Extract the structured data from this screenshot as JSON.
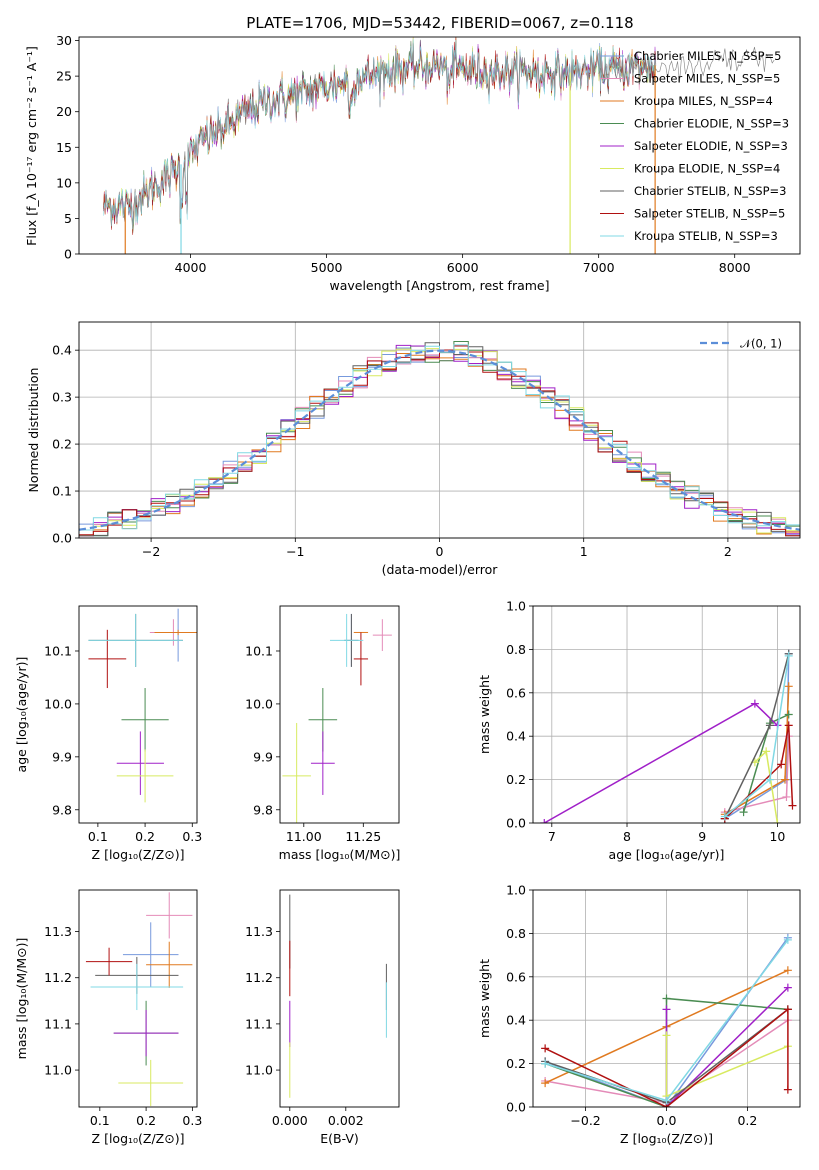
{
  "title": "PLATE=1706, MJD=53442, FIBERID=0067, z=0.118",
  "colors": {
    "models": [
      "#7799dd",
      "#e48bb8",
      "#e07a20",
      "#4a8c52",
      "#a020c8",
      "#d8ea60",
      "#606060",
      "#b01010",
      "#80d8e4"
    ],
    "gaussian": "#5b8ed8",
    "grid": "#b0b0b0"
  },
  "chart_data": [
    {
      "id": "spectrum",
      "type": "line",
      "xlabel": "wavelength [Angstrom, rest frame]",
      "ylabel": "Flux [f_λ 10⁻¹⁷ erg cm⁻² s⁻¹ A⁻¹]",
      "xlim": [
        3180,
        8480
      ],
      "ylim": [
        0,
        30.5
      ],
      "xticks": [
        4000,
        5000,
        6000,
        7000,
        8000
      ],
      "yticks": [
        0,
        5,
        10,
        15,
        20,
        25,
        30
      ],
      "legend_position": "upper-right",
      "grid": false,
      "continuum_shape": {
        "x": [
          3360,
          3550,
          3700,
          3850,
          3950,
          4100,
          4300,
          4500,
          4800,
          5000,
          5200,
          5500,
          5800,
          6000,
          6300,
          6600,
          6800,
          7000,
          7200,
          7400,
          7600,
          7800,
          8000,
          8250
        ],
        "y": [
          7.0,
          6.5,
          9.0,
          11.0,
          13.0,
          16.0,
          18.5,
          21.0,
          22.5,
          23.5,
          24.5,
          26.0,
          26.5,
          26.0,
          25.5,
          25.5,
          25.5,
          26.0,
          26.0,
          26.5,
          26.5,
          27.0,
          27.0,
          28.0
        ]
      },
      "series": [
        {
          "name": "Chabrier MILES, N_SSP=5"
        },
        {
          "name": "Salpeter MILES, N_SSP=5"
        },
        {
          "name": "Kroupa MILES, N_SSP=4"
        },
        {
          "name": "Chabrier ELODIE, N_SSP=3"
        },
        {
          "name": "Salpeter ELODIE, N_SSP=3"
        },
        {
          "name": "Kroupa ELODIE, N_SSP=4"
        },
        {
          "name": "Chabrier STELIB, N_SSP=3"
        },
        {
          "name": "Salpeter STELIB, N_SSP=5"
        },
        {
          "name": "Kroupa STELIB, N_SSP=3"
        }
      ]
    },
    {
      "id": "residuals",
      "type": "line",
      "xlabel": "(data-model)/error",
      "ylabel": "Normed distribution",
      "xlim": [
        -2.5,
        2.5
      ],
      "ylim": [
        0,
        0.46
      ],
      "xticks": [
        -2,
        -1,
        0,
        1,
        2
      ],
      "yticks": [
        0.0,
        0.1,
        0.2,
        0.3,
        0.4
      ],
      "grid": true,
      "legend": "𝒩(0, 1)",
      "legend_position": "upper-right"
    },
    {
      "id": "age_vs_Z",
      "type": "scatter",
      "xlabel": "Z [log₁₀(Z/Z⊙)]",
      "ylabel": "age  [log₁₀(age/yr)]",
      "xlim": [
        0.06,
        0.31
      ],
      "ylim": [
        9.775,
        10.185
      ],
      "xticks": [
        0.1,
        0.2,
        0.3
      ],
      "yticks": [
        9.8,
        9.9,
        10.0,
        10.1
      ],
      "points": [
        {
          "x": 0.27,
          "y": 10.13,
          "xerr": 0.0,
          "yerr": 0.05
        },
        {
          "x": 0.26,
          "y": 10.135,
          "xerr": 0.05,
          "yerr": 0.025
        },
        {
          "x": 0.27,
          "y": 10.135,
          "xerr": 0.05,
          "yerr": 0.005
        },
        {
          "x": 0.2,
          "y": 9.97,
          "xerr": 0.05,
          "yerr": 0.06
        },
        {
          "x": 0.19,
          "y": 9.888,
          "xerr": 0.05,
          "yerr": 0.06
        },
        {
          "x": 0.2,
          "y": 9.864,
          "xerr": 0.06,
          "yerr": 0.05
        },
        {
          "x": 0.18,
          "y": 10.12,
          "xerr": 0.1,
          "yerr": 0.05
        },
        {
          "x": 0.12,
          "y": 10.085,
          "xerr": 0.04,
          "yerr": 0.055
        },
        {
          "x": 0.18,
          "y": 10.12,
          "xerr": 0.1,
          "yerr": 0.05
        }
      ]
    },
    {
      "id": "age_vs_mass",
      "type": "scatter",
      "xlabel": "mass [log₁₀(M/M⊙)]",
      "ylabel": "",
      "xlim": [
        10.9,
        11.4
      ],
      "ylim": [
        9.775,
        10.185
      ],
      "xticks": [
        11.0,
        11.25
      ],
      "xticklabels": [
        "11.00",
        "11.25"
      ],
      "yticks": [
        9.8,
        9.9,
        10.0,
        10.1
      ],
      "points": [
        {
          "x": 11.2,
          "y": 10.12,
          "xerr": 0.03,
          "yerr": 0.05
        },
        {
          "x": 11.33,
          "y": 10.13,
          "xerr": 0.04,
          "yerr": 0.03
        },
        {
          "x": 11.24,
          "y": 10.135,
          "xerr": 0.03,
          "yerr": 0.0
        },
        {
          "x": 11.08,
          "y": 9.97,
          "xerr": 0.06,
          "yerr": 0.06
        },
        {
          "x": 11.08,
          "y": 9.888,
          "xerr": 0.05,
          "yerr": 0.06
        },
        {
          "x": 10.97,
          "y": 9.864,
          "xerr": 0.06,
          "yerr": 0.1
        },
        {
          "x": 11.2,
          "y": 10.12,
          "xerr": 0.03,
          "yerr": 0.05
        },
        {
          "x": 11.24,
          "y": 10.085,
          "xerr": 0.03,
          "yerr": 0.05
        },
        {
          "x": 11.18,
          "y": 10.12,
          "xerr": 0.07,
          "yerr": 0.05
        }
      ]
    },
    {
      "id": "weight_vs_age",
      "type": "line",
      "xlabel": "age  [log₁₀(age/yr)]",
      "ylabel": "mass weight",
      "xlim": [
        6.75,
        10.3
      ],
      "ylim": [
        0,
        1
      ],
      "xticks": [
        7,
        8,
        9,
        10
      ],
      "yticks": [
        0.0,
        0.2,
        0.4,
        0.6,
        0.8,
        1.0
      ],
      "grid": true,
      "series": [
        {
          "x": [
            9.3,
            10.12,
            10.15
          ],
          "y": [
            0.02,
            0.2,
            0.78
          ]
        },
        {
          "x": [
            9.3,
            10.12,
            10.15
          ],
          "y": [
            0.05,
            0.12,
            0.4
          ]
        },
        {
          "x": [
            9.3,
            10.1,
            10.15
          ],
          "y": [
            0.04,
            0.2,
            0.63
          ]
        },
        {
          "x": [
            9.55,
            9.9,
            10.15
          ],
          "y": [
            0.05,
            0.46,
            0.5
          ]
        },
        {
          "x": [
            6.9,
            9.7,
            10.0
          ],
          "y": [
            0.0,
            0.55,
            0.45
          ]
        },
        {
          "x": [
            9.7,
            9.85,
            10.0
          ],
          "y": [
            0.28,
            0.33,
            0.0
          ]
        },
        {
          "x": [
            9.3,
            9.9,
            10.15
          ],
          "y": [
            0.02,
            0.45,
            0.78
          ]
        },
        {
          "x": [
            9.3,
            10.05,
            10.15,
            10.2
          ],
          "y": [
            0.02,
            0.27,
            0.45,
            0.08
          ]
        },
        {
          "x": [
            9.3,
            9.9,
            10.15
          ],
          "y": [
            0.03,
            0.2,
            0.77
          ]
        }
      ]
    },
    {
      "id": "mass_vs_Z",
      "type": "scatter",
      "xlabel": "Z [log₁₀(Z/Z⊙)]",
      "ylabel": "mass [log₁₀(M/M⊙)]",
      "xlim": [
        0.055,
        0.31
      ],
      "ylim": [
        10.92,
        11.39
      ],
      "xticks": [
        0.1,
        0.2,
        0.3
      ],
      "yticks": [
        11.0,
        11.1,
        11.2,
        11.3
      ],
      "points": [
        {
          "x": 0.21,
          "y": 11.25,
          "xerr": 0.06,
          "yerr": 0.07
        },
        {
          "x": 0.25,
          "y": 11.335,
          "xerr": 0.05,
          "yerr": 0.05
        },
        {
          "x": 0.25,
          "y": 11.228,
          "xerr": 0.05,
          "yerr": 0.05
        },
        {
          "x": 0.2,
          "y": 11.08,
          "xerr": 0.07,
          "yerr": 0.07
        },
        {
          "x": 0.2,
          "y": 11.08,
          "xerr": 0.07,
          "yerr": 0.05
        },
        {
          "x": 0.21,
          "y": 10.972,
          "xerr": 0.07,
          "yerr": 0.05
        },
        {
          "x": 0.18,
          "y": 11.205,
          "xerr": 0.09,
          "yerr": 0.04
        },
        {
          "x": 0.12,
          "y": 11.235,
          "xerr": 0.05,
          "yerr": 0.03
        },
        {
          "x": 0.18,
          "y": 11.18,
          "xerr": 0.1,
          "yerr": 0.05
        }
      ]
    },
    {
      "id": "mass_vs_ebv",
      "type": "scatter",
      "xlabel": "E(B-V)",
      "ylabel": "",
      "xlim": [
        -0.00035,
        0.0039
      ],
      "ylim": [
        10.92,
        11.39
      ],
      "xticks": [
        0.0,
        0.002
      ],
      "xticklabels": [
        "0.000",
        "0.002"
      ],
      "yticks": [
        11.0,
        11.1,
        11.2,
        11.3
      ],
      "points": [
        {
          "x": 0.0,
          "y": 11.3,
          "xerr": 0,
          "yerr": 0.08
        },
        {
          "x": 0.0,
          "y": 11.22,
          "xerr": 0,
          "yerr": 0.06
        },
        {
          "x": 0.0,
          "y": 11.1,
          "xerr": 0,
          "yerr": 0.05
        },
        {
          "x": 0.0,
          "y": 11.0,
          "xerr": 0,
          "yerr": 0.06
        },
        {
          "x": 0.00345,
          "y": 11.18,
          "xerr": 0,
          "yerr": 0.05
        },
        {
          "x": 0.00345,
          "y": 11.13,
          "xerr": 0,
          "yerr": 0.06
        }
      ],
      "point_colors": [
        6,
        7,
        4,
        5,
        6,
        8
      ]
    },
    {
      "id": "weight_vs_Z",
      "type": "line",
      "xlabel": "Z [log₁₀(Z/Z⊙)]",
      "ylabel": "mass weight",
      "xlim": [
        -0.33,
        0.33
      ],
      "ylim": [
        0,
        1
      ],
      "xticks": [
        -0.2,
        0.0,
        0.2
      ],
      "xticklabels": [
        "−0.2",
        "0.0",
        "0.2"
      ],
      "yticks": [
        0.0,
        0.2,
        0.4,
        0.6,
        0.8,
        1.0
      ],
      "grid": true,
      "series": [
        {
          "x": [
            -0.3,
            0.0,
            0.3
          ],
          "y": [
            0.21,
            0.0,
            0.78
          ]
        },
        {
          "x": [
            -0.3,
            0.0,
            0.3
          ],
          "y": [
            0.12,
            0.02,
            0.4
          ]
        },
        {
          "x": [
            -0.3,
            0.0,
            0.3
          ],
          "y": [
            0.11,
            0.37,
            0.63
          ]
        },
        {
          "x": [
            -0.3,
            0.0,
            0.0,
            0.3
          ],
          "y": [
            0.2,
            0.0,
            0.5,
            0.45
          ]
        },
        {
          "x": [
            0.0,
            0.0,
            0.3
          ],
          "y": [
            0.45,
            0.0,
            0.55
          ]
        },
        {
          "x": [
            0.0,
            0.0,
            0.3
          ],
          "y": [
            0.33,
            0.05,
            0.28
          ]
        },
        {
          "x": [
            -0.3,
            0.0,
            0.3
          ],
          "y": [
            0.21,
            0.02,
            0.45
          ]
        },
        {
          "x": [
            -0.3,
            0.0,
            0.3,
            0.3
          ],
          "y": [
            0.27,
            0.0,
            0.45,
            0.08
          ]
        },
        {
          "x": [
            -0.3,
            0.0,
            0.3
          ],
          "y": [
            0.2,
            0.03,
            0.77
          ]
        }
      ]
    }
  ]
}
